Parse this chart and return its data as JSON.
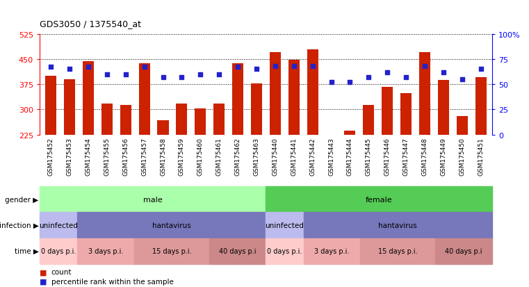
{
  "title": "GDS3050 / 1375540_at",
  "samples": [
    "GSM175452",
    "GSM175453",
    "GSM175454",
    "GSM175455",
    "GSM175456",
    "GSM175457",
    "GSM175458",
    "GSM175459",
    "GSM175460",
    "GSM175461",
    "GSM175462",
    "GSM175463",
    "GSM175440",
    "GSM175441",
    "GSM175442",
    "GSM175443",
    "GSM175444",
    "GSM175445",
    "GSM175446",
    "GSM175447",
    "GSM175448",
    "GSM175449",
    "GSM175450",
    "GSM175451"
  ],
  "counts": [
    400,
    390,
    443,
    318,
    313,
    438,
    268,
    318,
    303,
    318,
    438,
    378,
    470,
    448,
    478,
    222,
    237,
    313,
    368,
    348,
    470,
    388,
    280,
    395
  ],
  "percentile_ranks": [
    67,
    65,
    67,
    60,
    60,
    67,
    57,
    57,
    60,
    60,
    67,
    65,
    68,
    68,
    68,
    52,
    52,
    57,
    62,
    57,
    68,
    62,
    55,
    65
  ],
  "ymin": 225,
  "ymax": 525,
  "yticks": [
    225,
    300,
    375,
    450,
    525
  ],
  "right_yticks": [
    0,
    25,
    50,
    75,
    100
  ],
  "bar_color": "#cc2200",
  "dot_color": "#2222cc",
  "grid_linestyle": "dotted",
  "gender_row": {
    "male_count": 12,
    "female_count": 12,
    "male_color": "#aaffaa",
    "female_color": "#55cc55",
    "label": "gender"
  },
  "infection_row": {
    "segments": [
      {
        "label": "uninfected",
        "count": 2,
        "color": "#bbbbee"
      },
      {
        "label": "hantavirus",
        "count": 10,
        "color": "#7777bb"
      },
      {
        "label": "uninfected",
        "count": 2,
        "color": "#bbbbee"
      },
      {
        "label": "hantavirus",
        "count": 10,
        "color": "#7777bb"
      }
    ],
    "label": "infection"
  },
  "time_row": {
    "segments": [
      {
        "label": "0 days p.i.",
        "count": 2,
        "color": "#ffcccc"
      },
      {
        "label": "3 days p.i.",
        "count": 3,
        "color": "#eeaaaa"
      },
      {
        "label": "15 days p.i.",
        "count": 4,
        "color": "#dd9999"
      },
      {
        "label": "40 days p.i",
        "count": 3,
        "color": "#cc8888"
      },
      {
        "label": "0 days p.i.",
        "count": 2,
        "color": "#ffcccc"
      },
      {
        "label": "3 days p.i.",
        "count": 3,
        "color": "#eeaaaa"
      },
      {
        "label": "15 days p.i.",
        "count": 4,
        "color": "#dd9999"
      },
      {
        "label": "40 days p.i",
        "count": 3,
        "color": "#cc8888"
      }
    ],
    "label": "time"
  },
  "legend_count_color": "#cc2200",
  "legend_pct_color": "#2222cc",
  "label_arrow": "▶"
}
